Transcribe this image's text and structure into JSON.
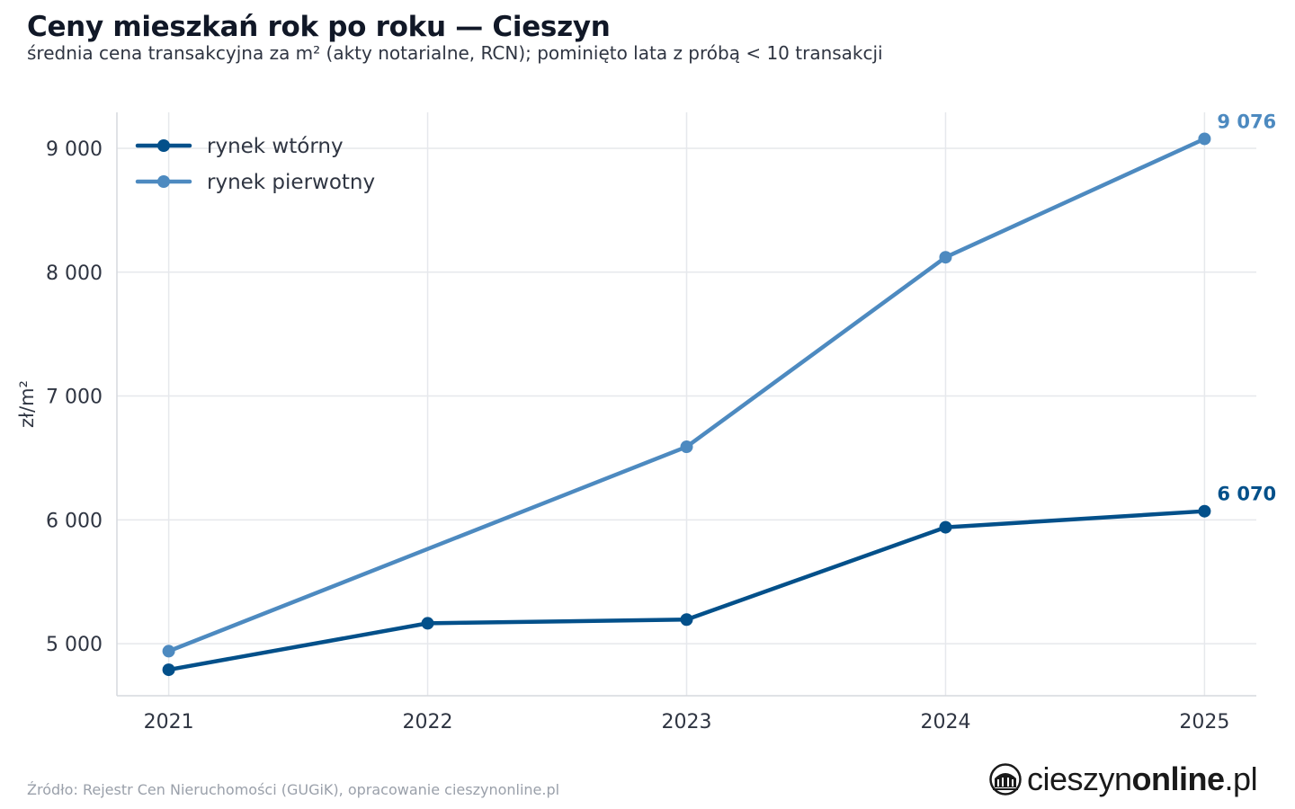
{
  "title": "Ceny mieszkań rok po roku — Cieszyn",
  "subtitle": "średnia cena transakcyjna za m² (akty notarialne, RCN); pominięto lata z próbą < 10 transakcji",
  "source": "Źródło: Rejestr Cen Nieruchomości (GUGiK), opracowanie cieszynonline.pl",
  "brand": {
    "name_regular": "cieszyn",
    "name_bold": "online",
    "name_suffix": ".pl",
    "logo_icon": "cieszyn-rotunda-logo-icon"
  },
  "chart_data": {
    "type": "line",
    "title": "Ceny mieszkań rok po roku — Cieszyn",
    "subtitle": "średnia cena transakcyjna za m² (akty notarialne, RCN); pominięto lata z próbą < 10 transakcji",
    "xlabel": "",
    "ylabel": "zł/m²",
    "x": [
      2021,
      2022,
      2023,
      2024,
      2025
    ],
    "x_tick_labels": [
      "2021",
      "2022",
      "2023",
      "2024",
      "2025"
    ],
    "xlim": [
      2020.8,
      2025.2
    ],
    "ylim": [
      4580,
      9290
    ],
    "y_ticks": [
      5000,
      6000,
      7000,
      8000,
      9000
    ],
    "y_tick_labels": [
      "5 000",
      "6 000",
      "7 000",
      "8 000",
      "9 000"
    ],
    "grid": true,
    "legend_position": "top-left",
    "series": [
      {
        "name": "rynek wtórny",
        "color": "#03508a",
        "points": [
          {
            "x": 2021,
            "y": 4790
          },
          {
            "x": 2022,
            "y": 5165
          },
          {
            "x": 2023,
            "y": 5195
          },
          {
            "x": 2024,
            "y": 5940
          },
          {
            "x": 2025,
            "y": 6070
          }
        ],
        "end_label": "6 070"
      },
      {
        "name": "rynek pierwotny",
        "color": "#4d8ac0",
        "points": [
          {
            "x": 2021,
            "y": 4940
          },
          {
            "x": 2023,
            "y": 6590
          },
          {
            "x": 2024,
            "y": 8120
          },
          {
            "x": 2025,
            "y": 9076
          }
        ],
        "end_label": "9 076"
      }
    ],
    "colors": {
      "grid": "#e6e8ec",
      "axis_spine": "#d6d9de",
      "tick_text": "#2f3542"
    }
  }
}
